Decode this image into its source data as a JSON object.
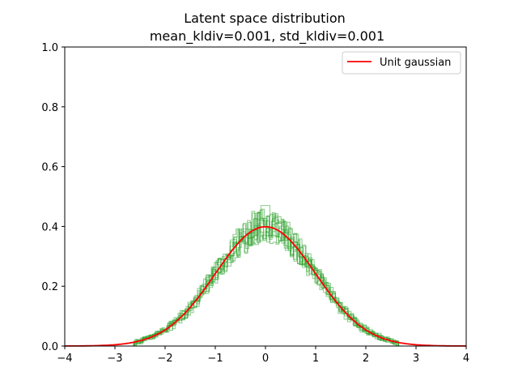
{
  "chart_data": {
    "type": "line",
    "title": "Latent space distribution",
    "subtitle": "mean_kldiv=0.001, std_kldiv=0.001",
    "xlabel": "",
    "ylabel": "",
    "xlim": [
      -4,
      4
    ],
    "ylim": [
      0,
      1.0
    ],
    "x_ticks": [
      -4,
      -3,
      -2,
      -1,
      0,
      1,
      2,
      3,
      4
    ],
    "x_tick_labels": [
      "−4",
      "−3",
      "−2",
      "−1",
      "0",
      "1",
      "2",
      "3",
      "4"
    ],
    "y_ticks": [
      0.0,
      0.2,
      0.4,
      0.6,
      0.8,
      1.0
    ],
    "y_tick_labels": [
      "0.0",
      "0.2",
      "0.4",
      "0.6",
      "0.8",
      "1.0"
    ],
    "grid": false,
    "legend_position": "top-right",
    "series": [
      {
        "name": "Unit gaussian",
        "kind": "line",
        "color": "#ff0000",
        "mean": 0,
        "std": 1
      }
    ],
    "histograms": {
      "color": "#2ca02c",
      "count": 10,
      "range": [
        -2.6,
        2.6
      ],
      "bin_width": 0.06,
      "peak_max": 0.47
    }
  }
}
